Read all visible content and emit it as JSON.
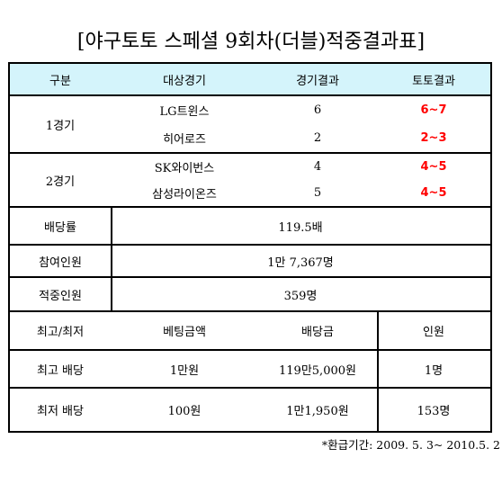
{
  "title": "[야구토토 스페셜 9회차(더블)적중결과표]",
  "header": {
    "col1": "구분",
    "col2": "대상경기",
    "col3": "경기결과",
    "col4": "토토결과"
  },
  "games": [
    {
      "label": "1경기",
      "rows": [
        {
          "team": "LG트윈스",
          "score": "6",
          "toto": "6~7"
        },
        {
          "team": "히어로즈",
          "score": "2",
          "toto": "2~3"
        }
      ]
    },
    {
      "label": "2경기",
      "rows": [
        {
          "team": "SK와이번스",
          "score": "4",
          "toto": "4~5"
        },
        {
          "team": "삼성라이온즈",
          "score": "5",
          "toto": "4~5"
        }
      ]
    }
  ],
  "summary": [
    {
      "label": "배당률",
      "value": "119.5배"
    },
    {
      "label": "참여인원",
      "value": "1만 7,367명"
    },
    {
      "label": "적중인원",
      "value": "359명"
    }
  ],
  "payout_header": {
    "col1": "최고/최저",
    "col2": "베팅금액",
    "col3": "배당금",
    "col4": "인원"
  },
  "payouts": [
    {
      "label": "최고 배당",
      "bet": "1만원",
      "payout": "119만5,000원",
      "people": "1명"
    },
    {
      "label": "최저 배당",
      "bet": "100원",
      "payout": "1만1,950원",
      "people": "153명"
    }
  ],
  "note": "*환급기간: 2009. 5. 3~ 2010.5. 2",
  "colors": {
    "header_bg": "#d4f4fb",
    "toto_result": "#ff0000"
  }
}
